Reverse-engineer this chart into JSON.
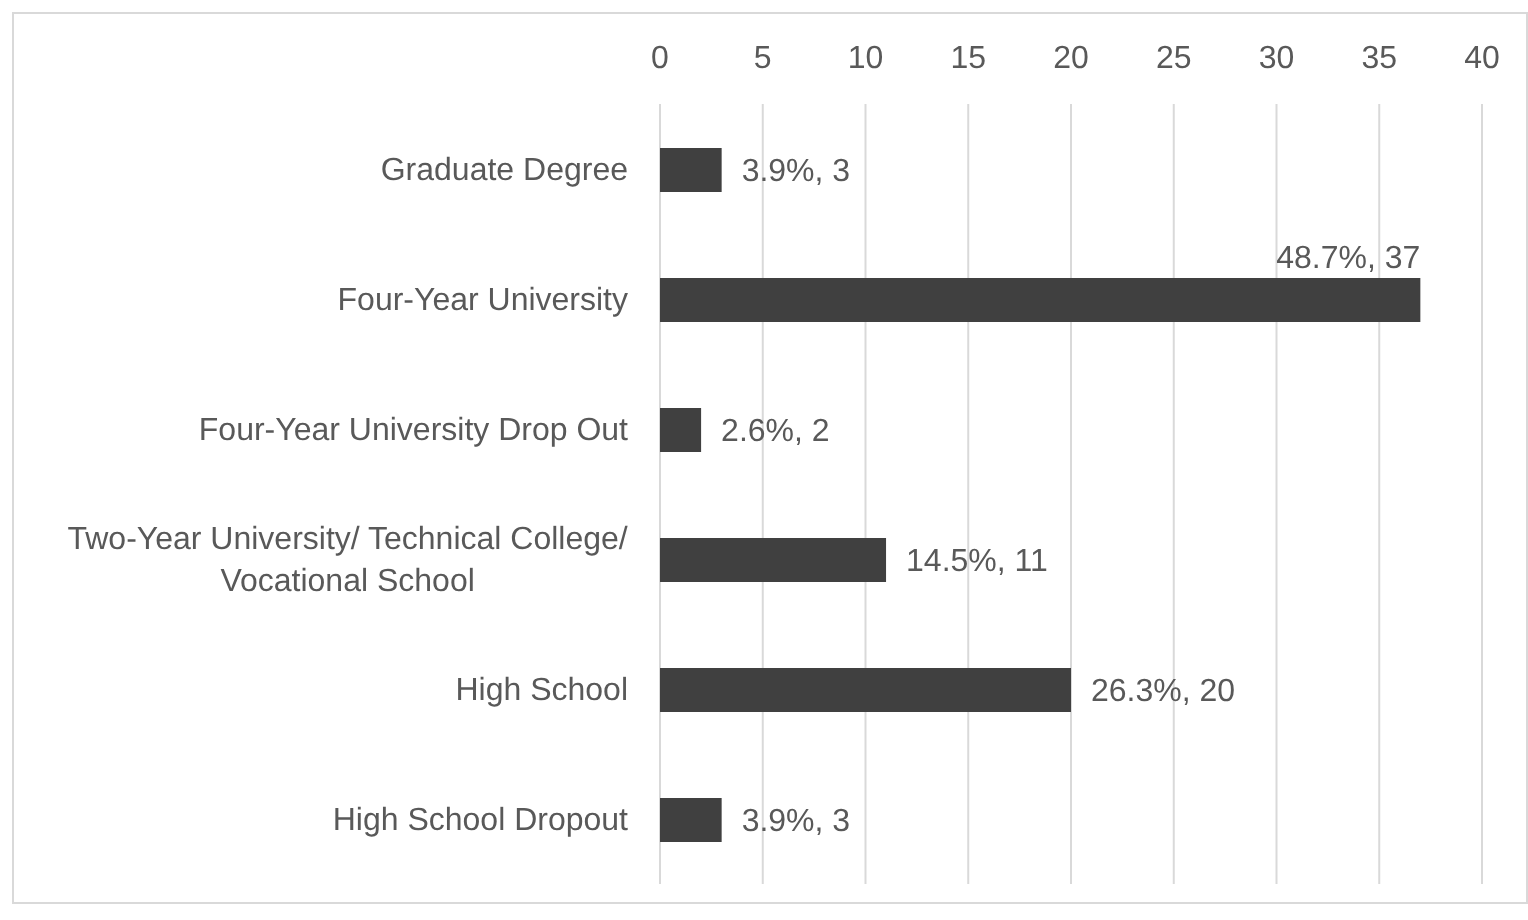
{
  "chart_data": {
    "type": "bar",
    "orientation": "horizontal",
    "categories": [
      "Graduate Degree",
      "Four-Year University",
      "Four-Year University Drop Out",
      "Two-Year University/ Technical College/ Vocational School",
      "High School",
      "High School Dropout"
    ],
    "values": [
      3,
      37,
      2,
      11,
      20,
      3
    ],
    "value_labels": [
      "3.9%, 3",
      "48.7%, 37",
      "2.6%, 2",
      "14.5%, 11",
      "26.3%, 20",
      "3.9%, 3"
    ],
    "color": "#404040",
    "xlim": [
      0,
      40
    ],
    "xticks": [
      0,
      5,
      10,
      15,
      20,
      25,
      30,
      35,
      40
    ],
    "grid": "x"
  }
}
